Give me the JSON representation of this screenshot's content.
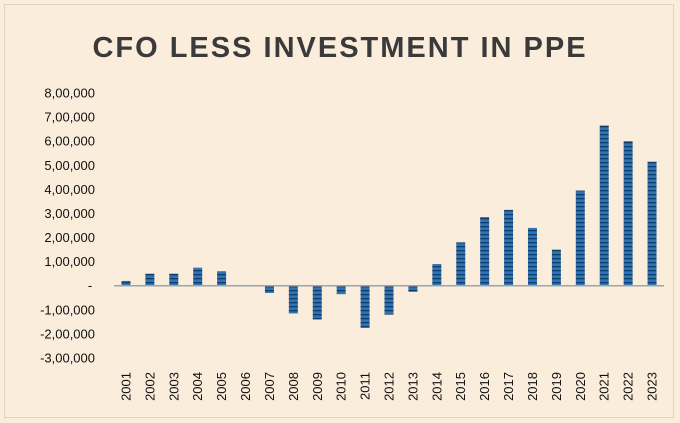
{
  "chart_data": {
    "type": "bar",
    "title": "CFO LESS INVESTMENT IN PPE",
    "xlabel": "",
    "ylabel": "",
    "categories": [
      "2001",
      "2002",
      "2003",
      "2004",
      "2005",
      "2006",
      "2007",
      "2008",
      "2009",
      "2010",
      "2011",
      "2012",
      "2013",
      "2014",
      "2015",
      "2016",
      "2017",
      "2018",
      "2019",
      "2020",
      "2021",
      "2022",
      "2023"
    ],
    "values": [
      20000,
      50000,
      50000,
      75000,
      60000,
      0,
      -30000,
      -115000,
      -140000,
      -35000,
      -175000,
      -120000,
      -25000,
      90000,
      180000,
      285000,
      315000,
      240000,
      150000,
      395000,
      665000,
      600000,
      515000
    ],
    "ylim": [
      -300000,
      800000
    ],
    "yticks": [
      800000,
      700000,
      600000,
      500000,
      400000,
      300000,
      200000,
      100000,
      0,
      -100000,
      -200000,
      -300000
    ],
    "ytick_labels": [
      "8,00,000",
      "7,00,000",
      "6,00,000",
      "5,00,000",
      "4,00,000",
      "3,00,000",
      "2,00,000",
      "1,00,000",
      "-",
      "-1,00,000",
      "-2,00,000",
      "-3,00,000"
    ],
    "grid": false,
    "legend": "none",
    "bar_color": "#2e74b5",
    "bar_stripe_color": "#0f3c68",
    "axis_color": "#9aa5ad"
  }
}
